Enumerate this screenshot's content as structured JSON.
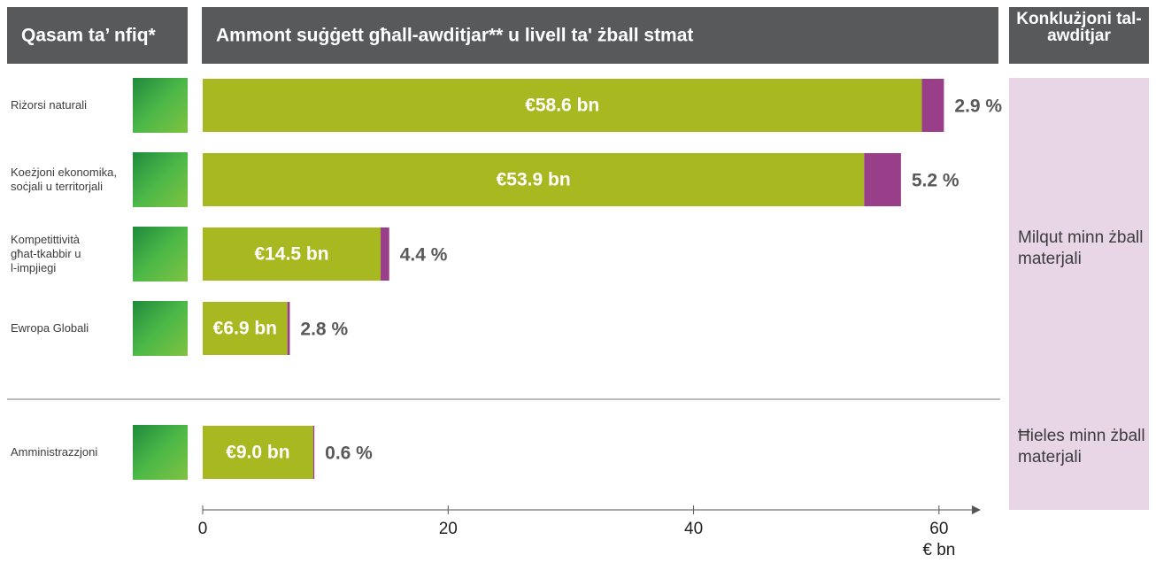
{
  "header": {
    "columns": [
      "Qasam ta’ nfiq*",
      "Ammont suġġett għall-awditjar** u livell ta' żball stmat",
      "Konklużjoni tal-awditjar"
    ]
  },
  "chart_data": {
    "type": "bar",
    "orientation": "horizontal",
    "stacked": true,
    "categories": [
      "Riżorsi naturali",
      "Koeżjoni ekonomika, soċjali u territorjali",
      "Kompetittività għat-tkabbir u l-impjiegi",
      "Ewropa Globali",
      "Amministrazzjoni"
    ],
    "series": [
      {
        "color": "#a8b820",
        "values": [
          58.6,
          53.9,
          14.5,
          6.9,
          9.0
        ],
        "value_labels": [
          "€58.6 bn",
          "€53.9 bn",
          "€14.5 bn",
          "€6.9 bn",
          "€9.0 bn"
        ]
      },
      {
        "color": "#993f8a",
        "values": [
          1.8,
          3.0,
          0.7,
          0.2,
          0.1
        ]
      }
    ],
    "error_rates": [
      2.9,
      5.2,
      4.4,
      2.8,
      0.6
    ],
    "error_rate_labels": [
      "2.9 %",
      "5.2 %",
      "4.4 %",
      "2.8 %",
      "0.6 %"
    ],
    "xlim": [
      0,
      63.4
    ],
    "xticks": [
      0,
      20,
      40,
      60
    ],
    "xlabel": "€ bn",
    "conclusions": [
      "Milqut minn żball materjali",
      "Ħieles minn żball materjali"
    ]
  }
}
